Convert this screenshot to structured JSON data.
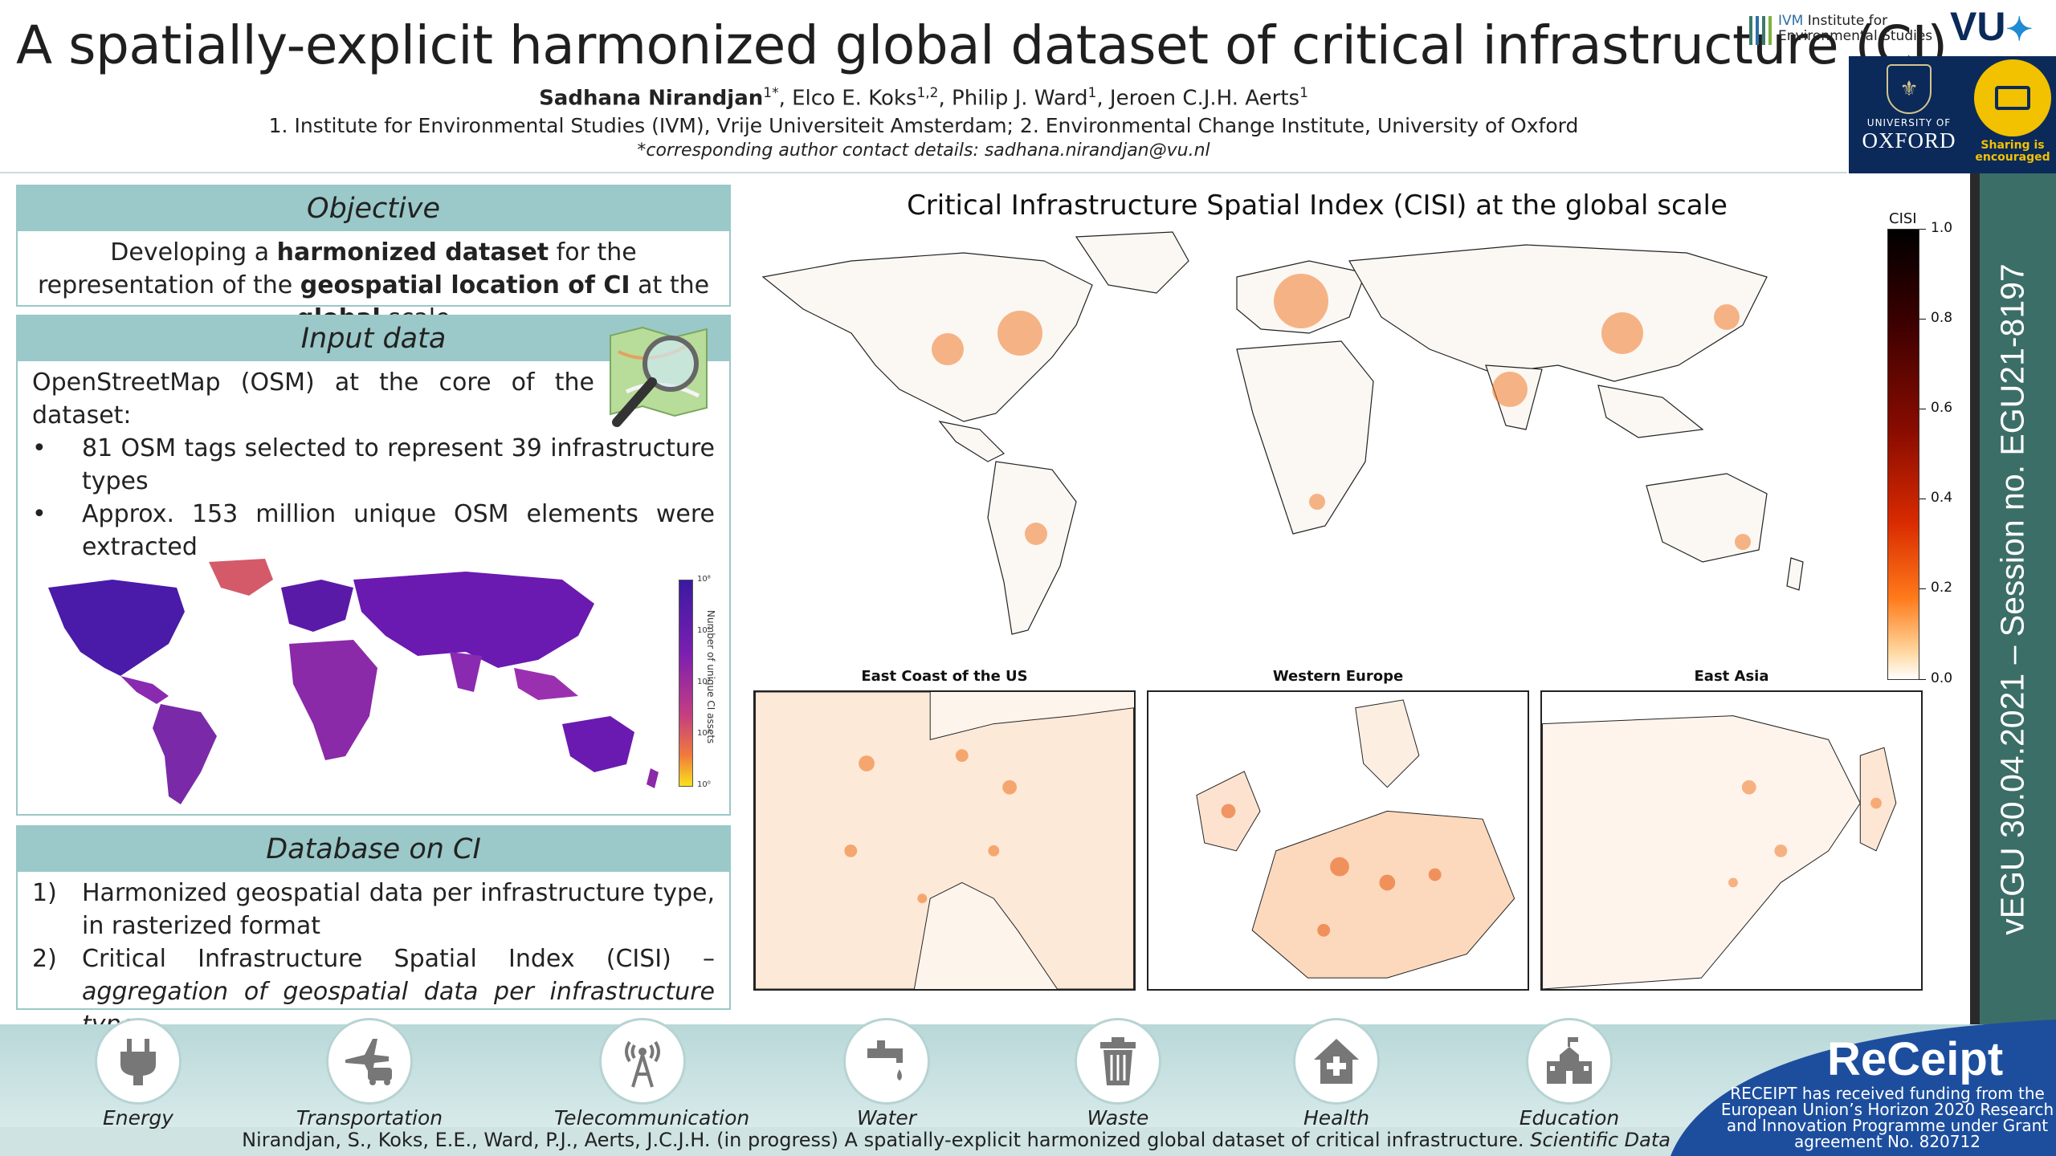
{
  "header": {
    "title": "A spatially-explicit harmonized global dataset of critical infrastructure (CI)",
    "authors": [
      {
        "name": "Sadhana Nirandjan",
        "sup": "1*",
        "lead": true
      },
      {
        "name": "Elco E. Koks",
        "sup": "1,2",
        "lead": false
      },
      {
        "name": "Philip J. Ward",
        "sup": "1",
        "lead": false
      },
      {
        "name": "Jeroen C.J.H. Aerts",
        "sup": "1",
        "lead": false
      }
    ],
    "affiliations": "1. Institute for Environmental Studies (IVM), Vrije Universiteit Amsterdam; 2. Environmental Change Institute, University of Oxford",
    "contact": "*corresponding author contact details: sadhana.nirandjan@vu.nl"
  },
  "logos": {
    "ivm_acronym": "IVM",
    "ivm_line1": " Institute for",
    "ivm_line2": "Environmental Studies",
    "vu": "VU",
    "oxford_small": "UNIVERSITY OF",
    "oxford_big": "OXFORD",
    "sharing_line1": "Sharing is",
    "sharing_line2": "encouraged"
  },
  "side_banner": "vEGU 30.04.2021 – Session no. EGU21-8197",
  "objective": {
    "heading": "Objective",
    "text_parts": [
      "Developing a ",
      "harmonized dataset",
      " for the representation of the ",
      "geospatial location of CI",
      " at the ",
      "global",
      " scale"
    ]
  },
  "input_data": {
    "heading": "Input data",
    "intro": "OpenStreetMap (OSM) at the core of the dataset:",
    "bullets": [
      "81 OSM tags selected to represent 39 infrastructure types",
      "Approx. 153 million unique OSM elements were extracted"
    ],
    "bullet_marker": "•",
    "colorbar_label": "Number of unique CI assets",
    "colorbar_ticks": [
      "10⁸",
      "10⁶",
      "10⁴",
      "10²",
      "10⁰"
    ],
    "colorbar_colors": [
      "#3a1aa0",
      "#7a1fb0",
      "#c33d82",
      "#f07a3c",
      "#f9e21d"
    ]
  },
  "database": {
    "heading": "Database on CI",
    "items": [
      {
        "marker": "1)",
        "text": "Harmonized geospatial data per infrastructure type, in rasterized format",
        "italic": ""
      },
      {
        "marker": "2)",
        "text": "Critical Infrastructure Spatial Index (CISI) – ",
        "italic": "aggregation of geospatial data per infrastructure type"
      }
    ]
  },
  "chart_data": {
    "type": "heatmap",
    "title": "Critical Infrastructure Spatial Index (CISI) at the global scale",
    "colorbar_label": "CISI",
    "colorbar_range": [
      0.0,
      1.0
    ],
    "colorbar_ticks": [
      "1.0",
      "0.8",
      "0.6",
      "0.4",
      "0.2",
      "0.0"
    ],
    "insets": [
      "East Coast of the US",
      "Western Europe",
      "East Asia"
    ]
  },
  "sectors": [
    {
      "label": "Energy",
      "icon": "plug-icon"
    },
    {
      "label": "Transportation",
      "icon": "plane-car-icon"
    },
    {
      "label": "Telecommunication",
      "icon": "antenna-icon"
    },
    {
      "label": "Water",
      "icon": "faucet-icon"
    },
    {
      "label": "Waste",
      "icon": "trash-icon"
    },
    {
      "label": "Health",
      "icon": "house-cross-icon"
    },
    {
      "label": "Education",
      "icon": "school-icon"
    }
  ],
  "citation": {
    "text": "Nirandjan, S., Koks, E.E., Ward, P.J., Aerts, J.C.J.H. (in progress) A spatially-explicit harmonized global dataset of critical infrastructure. ",
    "journal": "Scientific Data"
  },
  "receipt": {
    "logo": "ReCeipt",
    "funding": "RECEIPT has received funding from the European Union’s Horizon 2020 Research and Innovation Programme under Grant agreement No. 820712"
  },
  "colors": {
    "accent_teal": "#9bc8c8",
    "banner": "#3c6e68",
    "oxford_blue": "#0b2a5a",
    "receipt_blue": "#1d4e9e"
  }
}
